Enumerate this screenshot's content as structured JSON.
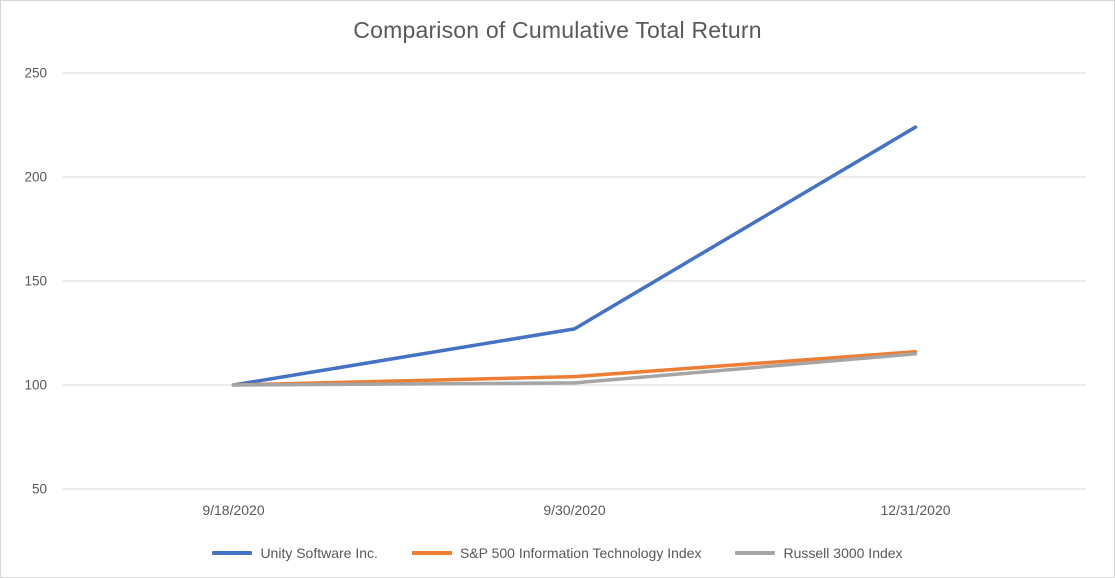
{
  "window": {
    "background": "#ffffff",
    "border_color": "#d6d6d6"
  },
  "colors": {
    "gridline": "#d9d9d9",
    "axis_text": "#595959",
    "title_text": "#595959"
  },
  "chart_data": {
    "type": "line",
    "title": "Comparison of Cumulative Total Return",
    "categories": [
      "9/18/2020",
      "9/30/2020",
      "12/31/2020"
    ],
    "series": [
      {
        "name": "Unity Software Inc.",
        "color": "#4472C4",
        "values": [
          100,
          127,
          224
        ]
      },
      {
        "name": "S&P 500 Information Technology Index",
        "color": "#ED7D31",
        "values": [
          100,
          104,
          116
        ]
      },
      {
        "name": "Russell 3000 Index",
        "color": "#A5A5A5",
        "values": [
          100,
          101,
          115
        ]
      }
    ],
    "xlabel": "",
    "ylabel": "",
    "ylim": [
      50,
      250
    ],
    "yticks": [
      50,
      100,
      150,
      200,
      250
    ],
    "grid": true,
    "legend_position": "bottom"
  }
}
